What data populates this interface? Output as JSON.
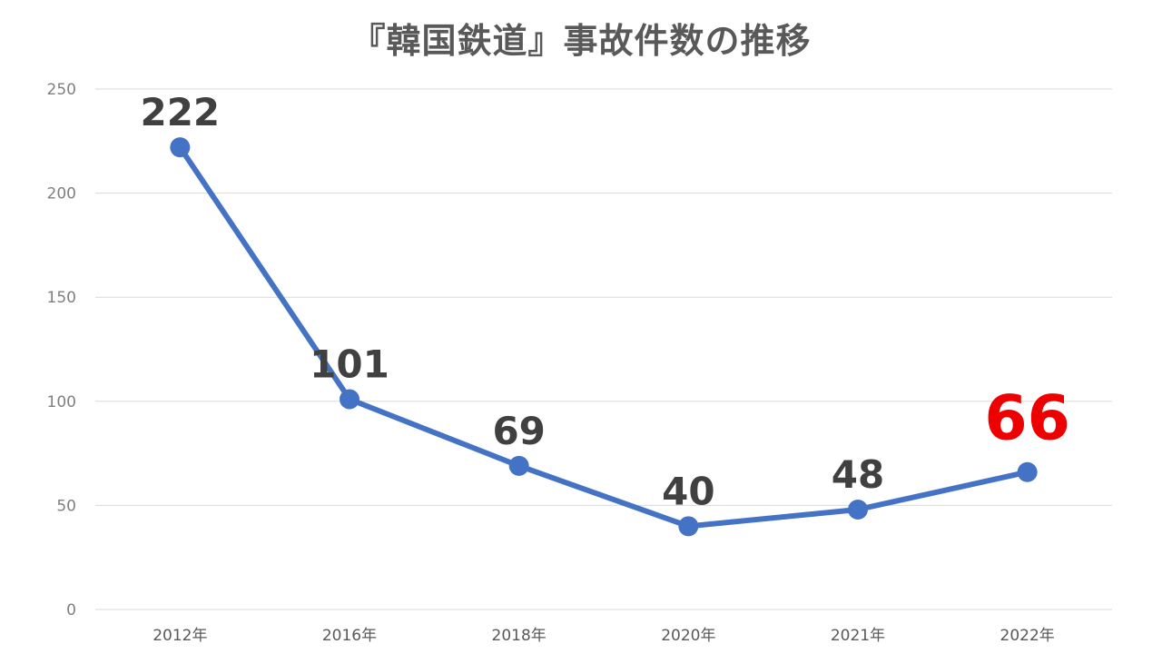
{
  "chart_data": {
    "type": "line",
    "title": "『韓国鉄道』事故件数の推移",
    "categories": [
      "2012年",
      "2016年",
      "2018年",
      "2020年",
      "2021年",
      "2022年"
    ],
    "series": [
      {
        "values": [
          222,
          101,
          69,
          40,
          48,
          66
        ]
      }
    ],
    "data_labels": [
      "222",
      "101",
      "69",
      "40",
      "48",
      "66"
    ],
    "highlight_index": 5,
    "yticks": [
      "0",
      "50",
      "100",
      "150",
      "200",
      "250"
    ],
    "ylim": [
      0,
      250
    ],
    "grid": true,
    "legend": "none",
    "colors": {
      "line": "#4472c4",
      "label": "#404040",
      "highlight": "#ee0000",
      "grid": "#d9d9d9"
    }
  }
}
